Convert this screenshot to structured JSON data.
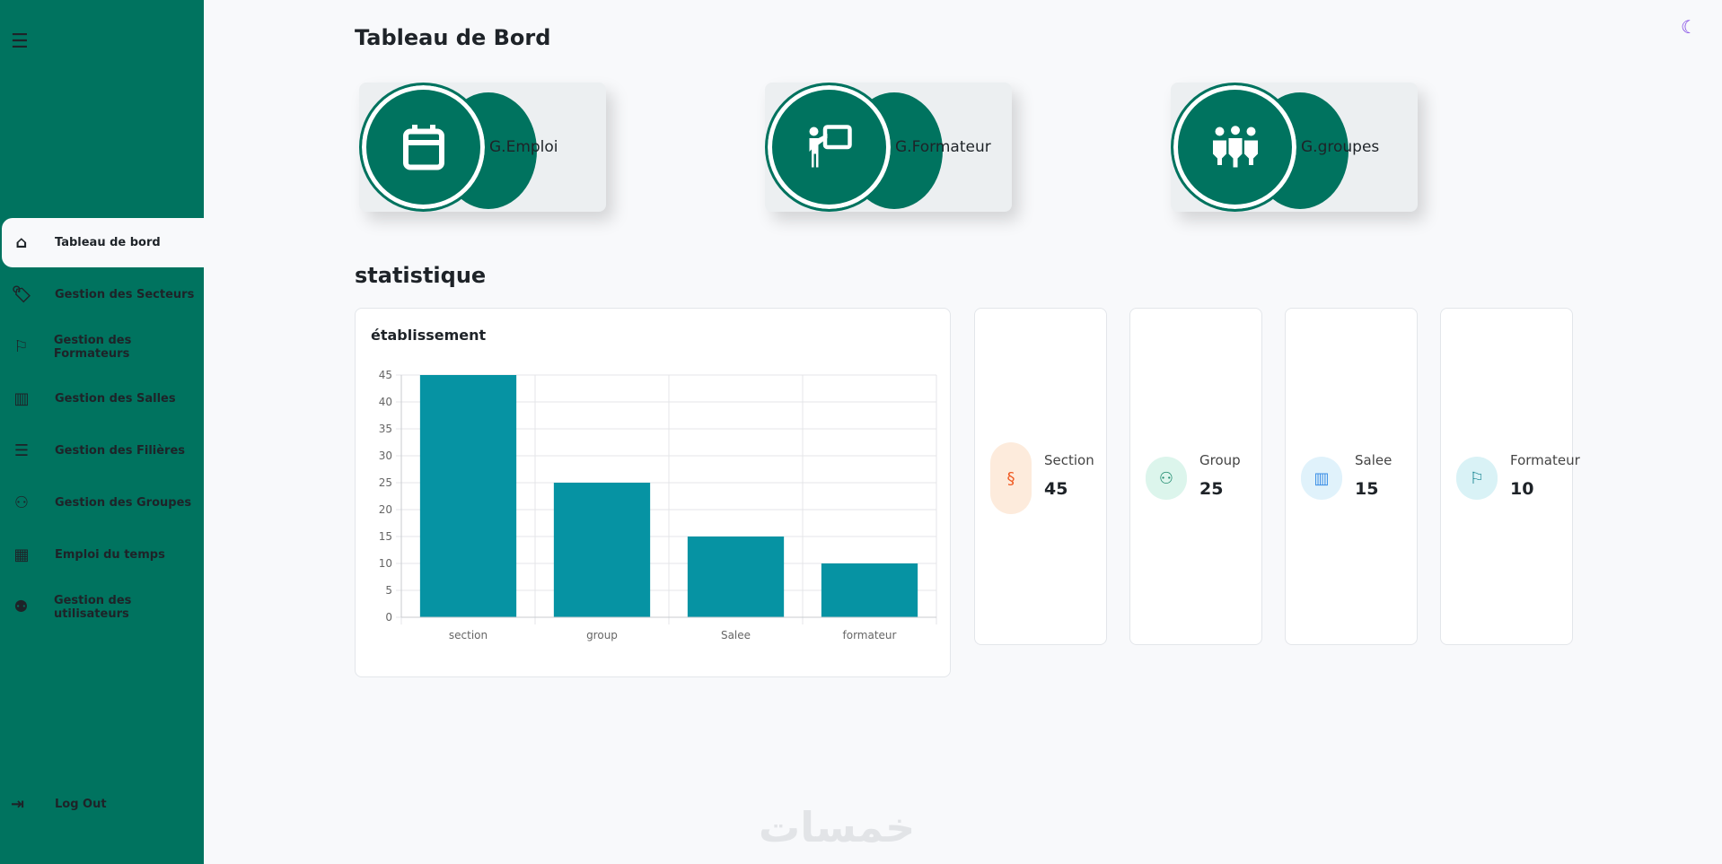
{
  "sidebar": {
    "items": [
      {
        "label": "Tableau de bord",
        "icon": "home-icon"
      },
      {
        "label": "Gestion des Secteurs",
        "icon": "tag-icon"
      },
      {
        "label": "Gestion des Formateurs",
        "icon": "teacher-icon"
      },
      {
        "label": "Gestion des Salles",
        "icon": "room-icon"
      },
      {
        "label": "Gestion des Filières",
        "icon": "list-check-icon"
      },
      {
        "label": "Gestion des Groupes",
        "icon": "people-group-icon"
      },
      {
        "label": "Emploi du temps",
        "icon": "calendar-icon"
      },
      {
        "label": "Gestion des utilisateurs",
        "icon": "users-icon"
      }
    ],
    "logout": "Log Out",
    "active": "Tableau de bord"
  },
  "header": {
    "title": "Tableau de Bord"
  },
  "quick_cards": [
    {
      "label": "G.Emploi",
      "icon": "calendar-icon"
    },
    {
      "label": "G.Formateur",
      "icon": "teacher-icon"
    },
    {
      "label": "G.groupes",
      "icon": "people-group-icon"
    }
  ],
  "stats": {
    "heading": "statistique",
    "cards": [
      {
        "label": "Section",
        "value": "45",
        "icon": "section-icon",
        "color": "#f05a22",
        "bg": "#fdebdc"
      },
      {
        "label": "Group",
        "value": "25",
        "icon": "people-group-icon",
        "color": "#1d8a6d",
        "bg": "#dcf5ec"
      },
      {
        "label": "Salee",
        "value": "15",
        "icon": "room-icon",
        "color": "#3a8ee6",
        "bg": "#e0f2fb"
      },
      {
        "label": "Formateur",
        "value": "10",
        "icon": "teacher-icon",
        "color": "#12828f",
        "bg": "#d9f2f6"
      }
    ]
  },
  "watermark": "خمسات",
  "chart_data": {
    "type": "bar",
    "title": "établissement",
    "categories": [
      "section",
      "group",
      "Salee",
      "formateur"
    ],
    "values": [
      45,
      25,
      15,
      10
    ],
    "ylim": [
      0,
      45
    ],
    "yticks": [
      0,
      5,
      10,
      15,
      20,
      25,
      30,
      35,
      40,
      45
    ],
    "grid": true,
    "bar_color": "#0693a3",
    "xlabel": "",
    "ylabel": ""
  }
}
